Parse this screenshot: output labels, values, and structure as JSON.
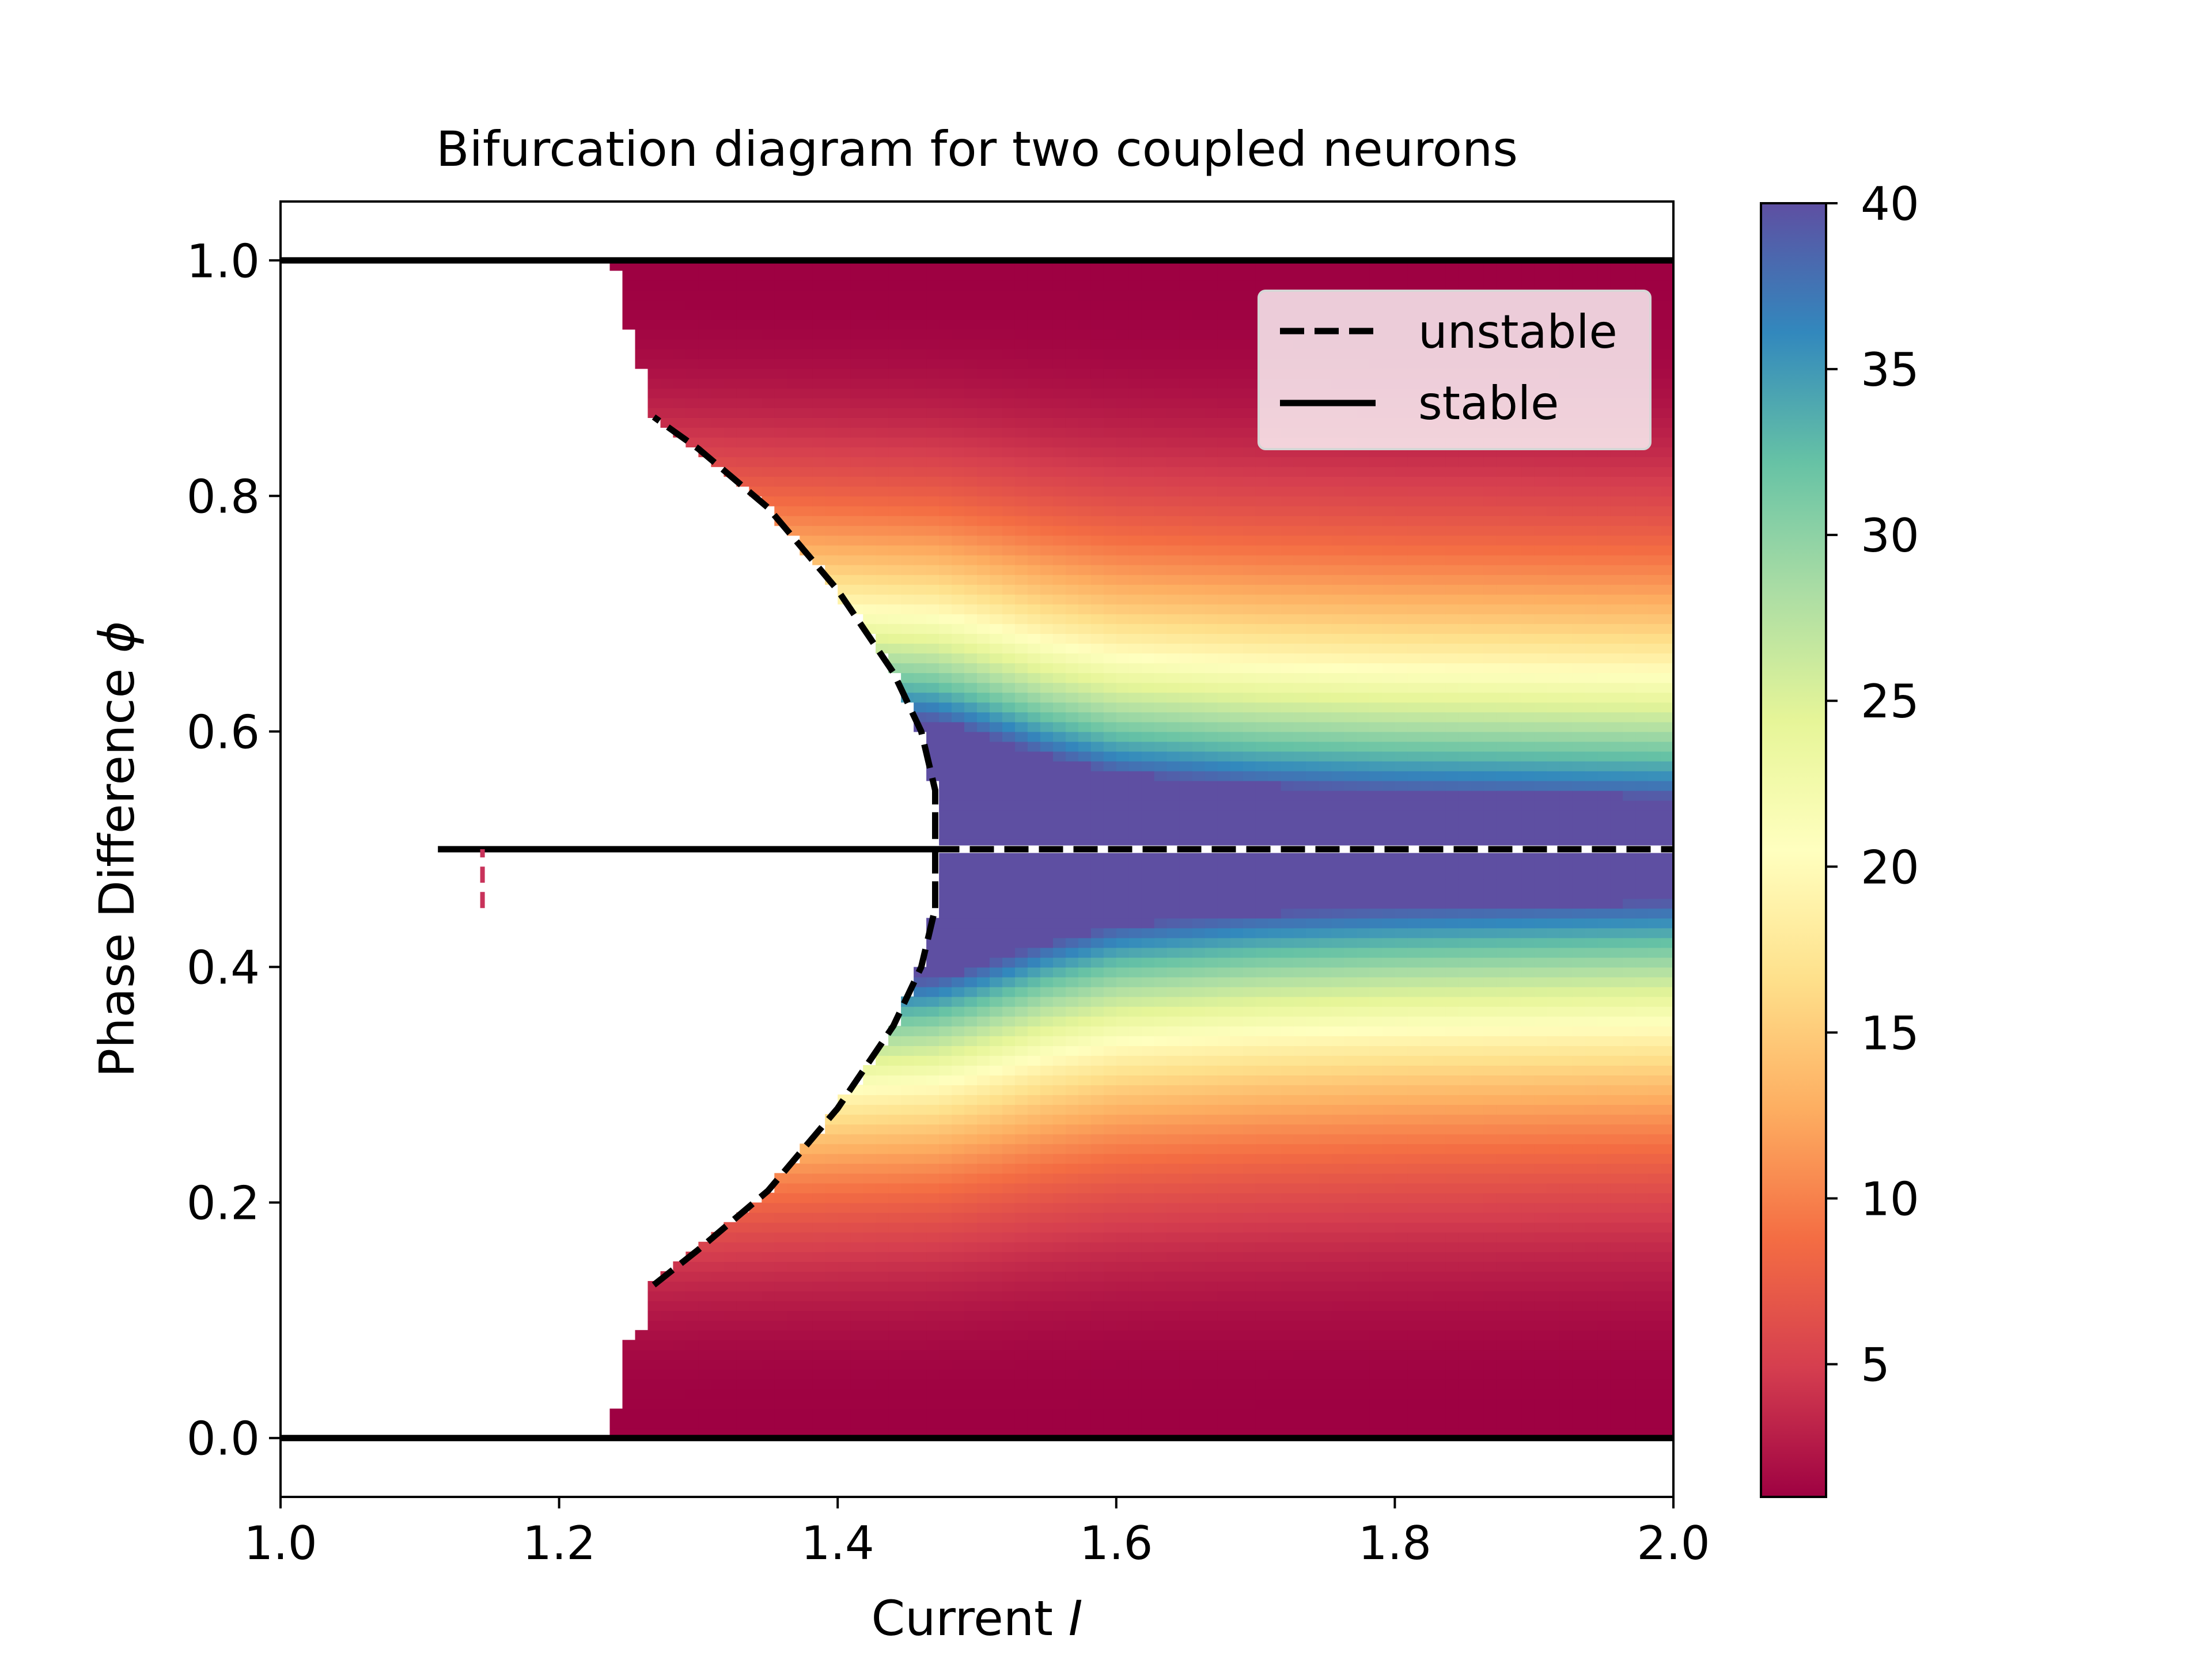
{
  "chart_data": {
    "type": "heatmap",
    "title": "Bifurcation diagram for two coupled neurons",
    "xlabel": "Current I",
    "xlabel_parts": {
      "text": "Current ",
      "symbol": "I"
    },
    "ylabel": "Phase Difference ϕ",
    "ylabel_parts": {
      "text": "Phase Difference ",
      "symbol": "ϕ"
    },
    "xlim": [
      1.0,
      2.0
    ],
    "ylim": [
      -0.05,
      1.05
    ],
    "xticks": [
      1.0,
      1.2,
      1.4,
      1.6,
      1.8,
      2.0
    ],
    "xtick_labels": [
      "1.0",
      "1.2",
      "1.4",
      "1.6",
      "1.8",
      "2.0"
    ],
    "yticks": [
      0.0,
      0.2,
      0.4,
      0.6,
      0.8,
      1.0
    ],
    "ytick_labels": [
      "0.0",
      "0.2",
      "0.4",
      "0.6",
      "0.8",
      "1.0"
    ],
    "grid": false,
    "colormap": "Spectral",
    "colorbar": {
      "range": [
        1,
        40
      ],
      "ticks": [
        5,
        10,
        15,
        20,
        25,
        30,
        35,
        40
      ],
      "tick_labels": [
        "5",
        "10",
        "15",
        "20",
        "25",
        "30",
        "35",
        "40"
      ]
    },
    "legend": {
      "placement": "top-right",
      "entries": [
        {
          "label": "unstable",
          "style": "dashed",
          "color": "#000000"
        },
        {
          "label": "stable",
          "style": "solid",
          "color": "#000000"
        }
      ]
    },
    "heatmap_region": {
      "description_values": "value ~40 near phi=0.5 right of fold, falling to ~1 at phi=0 and phi=1",
      "left_boundary": {
        "phi": [
          0.0,
          0.02,
          0.05,
          0.08,
          0.1,
          0.13,
          0.87,
          0.9,
          0.92,
          0.95,
          0.98,
          1.0
        ],
        "I": [
          1.232,
          1.24,
          1.245,
          1.25,
          1.262,
          1.268,
          1.268,
          1.262,
          1.255,
          1.248,
          1.243,
          1.24
        ]
      },
      "saturation_half_width": {
        "I": [
          1.47,
          1.5,
          1.55,
          1.6,
          1.7,
          1.8,
          2.0
        ],
        "w": [
          0.11,
          0.1,
          0.08,
          0.065,
          0.055,
          0.05,
          0.045
        ]
      }
    },
    "series": [
      {
        "name": "unstable",
        "style": "dashed",
        "curve": "fold",
        "x": [
          1.268,
          1.3,
          1.35,
          1.4,
          1.44,
          1.46,
          1.47,
          1.47,
          1.46,
          1.44,
          1.4,
          1.35,
          1.3,
          1.268
        ],
        "y": [
          0.13,
          0.16,
          0.21,
          0.28,
          0.35,
          0.4,
          0.45,
          0.55,
          0.6,
          0.65,
          0.72,
          0.79,
          0.84,
          0.867
        ]
      },
      {
        "name": "unstable",
        "style": "dashed",
        "curve": "antiphase-upper",
        "x": [
          1.47,
          2.0
        ],
        "y": [
          0.5,
          0.5
        ]
      },
      {
        "name": "stable",
        "style": "solid",
        "curve": "antiphase-lower",
        "x": [
          1.113,
          1.47
        ],
        "y": [
          0.5,
          0.5
        ]
      },
      {
        "name": "stable",
        "style": "solid",
        "curve": "in-phase-0",
        "x": [
          1.0,
          2.0
        ],
        "y": [
          0.0,
          0.0
        ]
      },
      {
        "name": "stable",
        "style": "solid",
        "curve": "in-phase-1",
        "x": [
          1.0,
          2.0
        ],
        "y": [
          1.0,
          1.0
        ]
      },
      {
        "name": "",
        "style": "dashed",
        "curve": "fold-vertical",
        "x": [
          1.47,
          1.47
        ],
        "y": [
          0.45,
          0.55
        ]
      },
      {
        "name": "",
        "style": "dash-red",
        "curve": "marker",
        "x": [
          1.145,
          1.145
        ],
        "y": [
          0.45,
          0.5
        ]
      }
    ]
  }
}
